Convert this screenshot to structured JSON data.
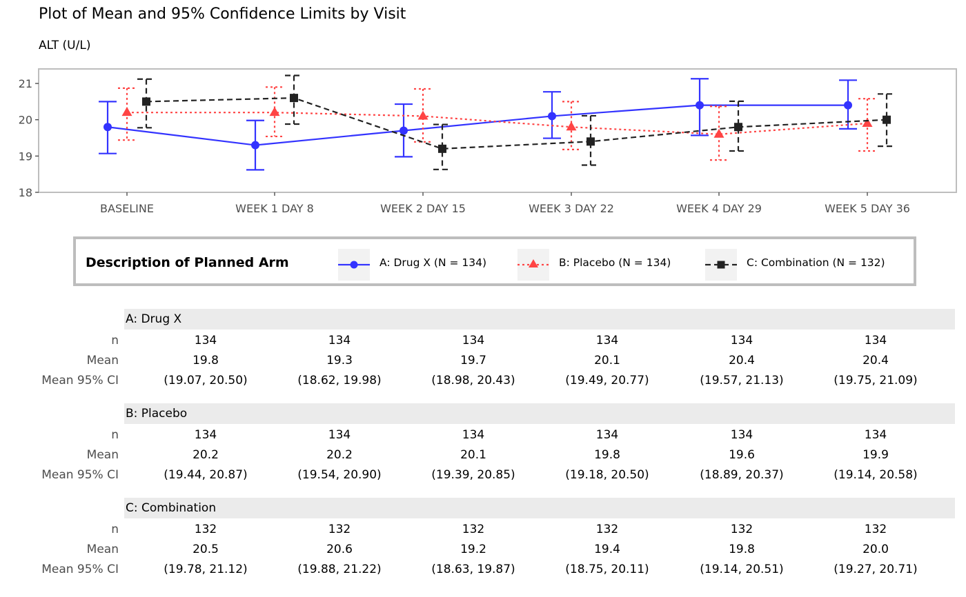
{
  "title": "Plot of Mean and 95% Confidence Limits by Visit",
  "subtitle": "ALT (U/L)",
  "chart_data": {
    "type": "line",
    "categories": [
      "BASELINE",
      "WEEK 1 DAY 8",
      "WEEK 2 DAY 15",
      "WEEK 3 DAY 22",
      "WEEK 4 DAY 29",
      "WEEK 5 DAY 36"
    ],
    "ylim": [
      18,
      21.4
    ],
    "yticks": [
      18,
      19,
      20,
      21
    ],
    "series": [
      {
        "name": "A: Drug X (N = 134)",
        "color": "#3333ff",
        "marker": "circle",
        "linestyle": "solid",
        "mean": [
          19.8,
          19.3,
          19.7,
          20.1,
          20.4,
          20.4
        ],
        "lower": [
          19.07,
          18.62,
          18.98,
          19.49,
          19.57,
          19.75
        ],
        "upper": [
          20.5,
          19.98,
          20.43,
          20.77,
          21.13,
          21.09
        ]
      },
      {
        "name": "B: Placebo (N = 134)",
        "color": "#ff4444",
        "marker": "triangle",
        "linestyle": "dotted",
        "mean": [
          20.2,
          20.2,
          20.1,
          19.8,
          19.6,
          19.9
        ],
        "lower": [
          19.44,
          19.54,
          19.39,
          19.18,
          18.89,
          19.14
        ],
        "upper": [
          20.87,
          20.9,
          20.85,
          20.5,
          20.37,
          20.58
        ]
      },
      {
        "name": "C: Combination (N = 132)",
        "color": "#222222",
        "marker": "square",
        "linestyle": "dashed",
        "mean": [
          20.5,
          20.6,
          19.2,
          19.4,
          19.8,
          20.0
        ],
        "lower": [
          19.78,
          19.88,
          18.63,
          18.75,
          19.14,
          19.27
        ],
        "upper": [
          21.12,
          21.22,
          19.87,
          20.11,
          20.51,
          20.71
        ]
      }
    ]
  },
  "legend": {
    "title": "Description of Planned Arm",
    "items": [
      "A: Drug X (N = 134)",
      "B: Placebo (N = 134)",
      "C: Combination (N = 132)"
    ]
  },
  "table": {
    "row_labels": [
      "n",
      "Mean",
      "Mean 95% CI"
    ],
    "groups": [
      {
        "name": "A: Drug X",
        "n": [
          "134",
          "134",
          "134",
          "134",
          "134",
          "134"
        ],
        "mean": [
          "19.8",
          "19.3",
          "19.7",
          "20.1",
          "20.4",
          "20.4"
        ],
        "ci": [
          "(19.07, 20.50)",
          "(18.62, 19.98)",
          "(18.98, 20.43)",
          "(19.49, 20.77)",
          "(19.57, 21.13)",
          "(19.75, 21.09)"
        ]
      },
      {
        "name": "B: Placebo",
        "n": [
          "134",
          "134",
          "134",
          "134",
          "134",
          "134"
        ],
        "mean": [
          "20.2",
          "20.2",
          "20.1",
          "19.8",
          "19.6",
          "19.9"
        ],
        "ci": [
          "(19.44, 20.87)",
          "(19.54, 20.90)",
          "(19.39, 20.85)",
          "(19.18, 20.50)",
          "(18.89, 20.37)",
          "(19.14, 20.58)"
        ]
      },
      {
        "name": "C: Combination",
        "n": [
          "132",
          "132",
          "132",
          "132",
          "132",
          "132"
        ],
        "mean": [
          "20.5",
          "20.6",
          "19.2",
          "19.4",
          "19.8",
          "20.0"
        ],
        "ci": [
          "(19.78, 21.12)",
          "(19.88, 21.22)",
          "(18.63, 19.87)",
          "(18.75, 20.11)",
          "(19.14, 20.51)",
          "(19.27, 20.71)"
        ]
      }
    ]
  }
}
